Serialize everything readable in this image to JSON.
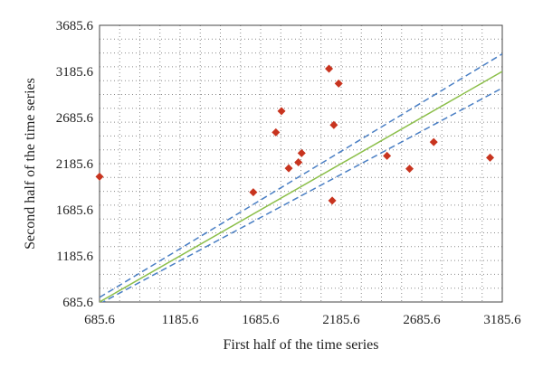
{
  "chart_data": {
    "type": "scatter",
    "title": "",
    "xlabel": "First half of the time series",
    "ylabel": "Second half of the time series",
    "xlim": [
      685.6,
      3185.6
    ],
    "ylim": [
      685.6,
      3685.6
    ],
    "x_ticks": [
      "685.6",
      "1185.6",
      "1685.6",
      "2185.6",
      "2685.6",
      "3185.6"
    ],
    "y_ticks": [
      "685.6",
      "1185.6",
      "1685.6",
      "2185.6",
      "2685.6",
      "3185.6",
      "3685.6"
    ],
    "grid": "dotted",
    "series": [
      {
        "kind": "points",
        "color": "#c8341f",
        "marker": "diamond",
        "points": [
          {
            "x": 685.6,
            "y": 2045
          },
          {
            "x": 1640,
            "y": 1875
          },
          {
            "x": 1780,
            "y": 2525
          },
          {
            "x": 1815,
            "y": 2755
          },
          {
            "x": 1860,
            "y": 2135
          },
          {
            "x": 1920,
            "y": 2200
          },
          {
            "x": 1940,
            "y": 2300
          },
          {
            "x": 2110,
            "y": 3215
          },
          {
            "x": 2130,
            "y": 1785
          },
          {
            "x": 2140,
            "y": 2605
          },
          {
            "x": 2170,
            "y": 3055
          },
          {
            "x": 2470,
            "y": 2270
          },
          {
            "x": 2610,
            "y": 2130
          },
          {
            "x": 2760,
            "y": 2420
          },
          {
            "x": 3110,
            "y": 2250
          }
        ]
      },
      {
        "kind": "line",
        "style": "solid",
        "color": "#8cbf4a",
        "points": [
          {
            "x": 685.6,
            "y": 685.6
          },
          {
            "x": 3185.6,
            "y": 3185.6
          }
        ]
      },
      {
        "kind": "line",
        "style": "dashed",
        "color": "#4a7fc4",
        "points": [
          {
            "x": 685.6,
            "y": 735.6
          },
          {
            "x": 3185.6,
            "y": 3375.6
          }
        ]
      },
      {
        "kind": "line",
        "style": "dashed",
        "color": "#4a7fc4",
        "points": [
          {
            "x": 685.6,
            "y": 665.6
          },
          {
            "x": 3185.6,
            "y": 3005.6
          }
        ]
      }
    ]
  }
}
